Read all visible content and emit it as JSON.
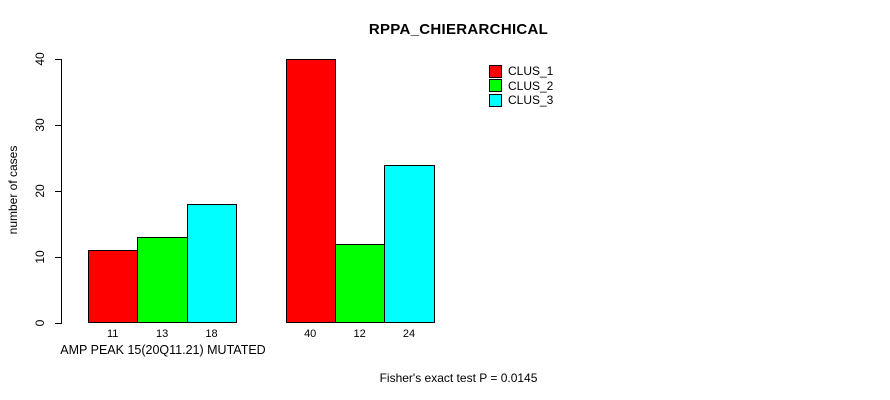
{
  "chart_data": {
    "type": "bar",
    "title": "RPPA_CHIERARCHICAL",
    "ylabel": "number of cases",
    "ylim": [
      0,
      40
    ],
    "yticks": [
      0,
      10,
      20,
      30,
      40
    ],
    "grid": false,
    "legend_position": "top-right",
    "series": [
      {
        "name": "CLUS_1",
        "color": "#ff0000"
      },
      {
        "name": "CLUS_2",
        "color": "#00ff00"
      },
      {
        "name": "CLUS_3",
        "color": "#00ffff"
      }
    ],
    "groups": [
      {
        "label": "AMP PEAK 15(20Q11.21) MUTATED",
        "values": [
          11,
          13,
          18
        ]
      },
      {
        "label": "",
        "values": [
          40,
          12,
          24
        ]
      }
    ],
    "bar_value_labels": [
      "11",
      "13",
      "18",
      "40",
      "12",
      "24"
    ],
    "footnote": "Fisher's exact test P = 0.0145"
  }
}
